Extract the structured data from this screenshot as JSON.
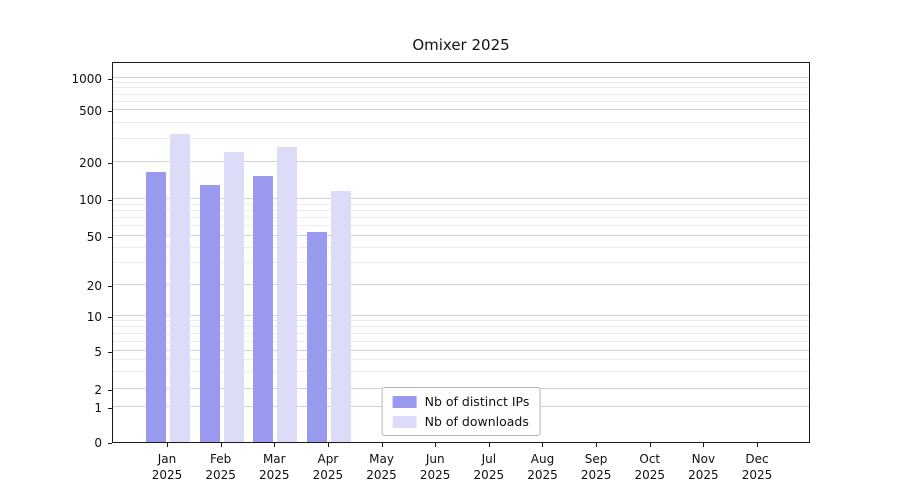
{
  "title": "Omixer 2025",
  "colors": {
    "series_ips": "#9999ee",
    "series_downloads": "#dcdcf8",
    "grid_major": "#d2d2d2",
    "grid_minor": "#ebebeb",
    "axis": "#1a1a1a"
  },
  "chart_data": {
    "type": "bar",
    "title": "Omixer 2025",
    "categories": [
      "Jan",
      "Feb",
      "Mar",
      "Apr",
      "May",
      "Jun",
      "Jul",
      "Aug",
      "Sep",
      "Oct",
      "Nov",
      "Dec"
    ],
    "category_year": "2025",
    "series": [
      {
        "name": "Nb of distinct IPs",
        "color": "#9999ee",
        "values": [
          165,
          130,
          155,
          54,
          null,
          null,
          null,
          null,
          null,
          null,
          null,
          null
        ]
      },
      {
        "name": "Nb of downloads",
        "color": "#dcdcf8",
        "values": [
          330,
          240,
          260,
          115,
          null,
          null,
          null,
          null,
          null,
          null,
          null,
          null
        ]
      }
    ],
    "y_ticks": [
      0,
      1,
      2,
      5,
      10,
      20,
      50,
      100,
      200,
      500,
      1000
    ],
    "y_minor_ticks": [
      3,
      4,
      6,
      7,
      8,
      9,
      30,
      40,
      60,
      70,
      80,
      90,
      300,
      400,
      600,
      700,
      800,
      900
    ],
    "y_scale": "symlog",
    "ylim": [
      0,
      1500
    ],
    "grid": true,
    "legend_position": "lower center"
  }
}
